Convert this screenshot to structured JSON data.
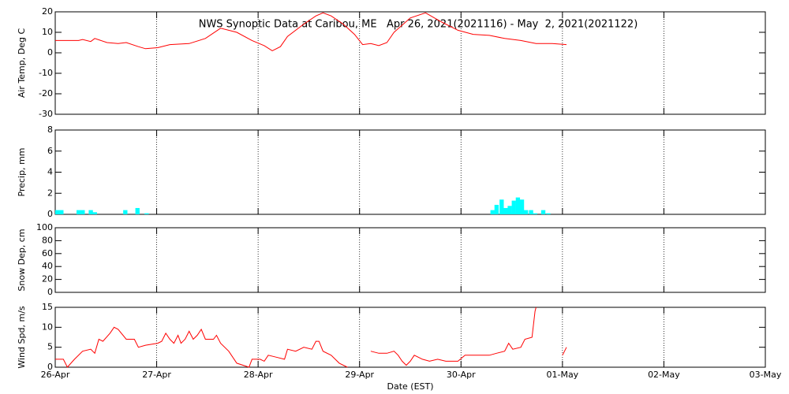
{
  "chart_data": [
    {
      "type": "line",
      "title": "NWS Synoptic Data at Caribou, ME   Apr 26, 2021(2021116) - May  2, 2021(2021122)",
      "ylabel": "Air Temp, Deg C",
      "color": "#ff0000",
      "x": [
        0,
        0.23,
        0.27,
        0.35,
        0.39,
        0.51,
        0.62,
        0.7,
        0.82,
        0.89,
        1.01,
        1.13,
        1.32,
        1.48,
        1.63,
        1.79,
        1.94,
        2.06,
        2.14,
        2.22,
        2.29,
        2.45,
        2.57,
        2.64,
        2.72,
        2.84,
        2.95,
        3.03,
        3.11,
        3.19,
        3.27,
        3.34,
        3.5,
        3.65,
        3.81,
        3.97,
        4.12,
        4.28,
        4.43,
        4.59,
        4.74,
        4.9,
        5.04
      ],
      "values": [
        6,
        6,
        6.5,
        5.5,
        7,
        5,
        4.5,
        5,
        3,
        2,
        2.5,
        4,
        4.5,
        7,
        12,
        10,
        6,
        3.5,
        1,
        3,
        8,
        14,
        18,
        19.5,
        18,
        14,
        9,
        4,
        4.5,
        3.5,
        5,
        10,
        17,
        19.5,
        15,
        11,
        9,
        8.5,
        7,
        6,
        4.5,
        4.5,
        4
      ],
      "xlim": [
        0,
        7
      ],
      "xticks": [
        0,
        1,
        2,
        3,
        4,
        5,
        6,
        7
      ],
      "ylim": [
        -30,
        20
      ],
      "yticks": [
        -30,
        -20,
        -10,
        0,
        10,
        20
      ]
    },
    {
      "type": "bar",
      "ylabel": "Precip, mm",
      "color": "#00ffff",
      "x": [
        0.0,
        0.04,
        0.21,
        0.25,
        0.33,
        0.37,
        0.67,
        0.79,
        0.88,
        4.29,
        4.33,
        4.38,
        4.42,
        4.46,
        4.5,
        4.54,
        4.58,
        4.62,
        4.67,
        4.71,
        4.79,
        4.84
      ],
      "values": [
        0.4,
        0.4,
        0.4,
        0.4,
        0.4,
        0.2,
        0.4,
        0.6,
        0.1,
        0.4,
        0.9,
        1.4,
        0.6,
        0.8,
        1.3,
        1.6,
        1.4,
        0.4,
        0.4,
        0.1,
        0.4,
        0.1
      ],
      "xlim": [
        0,
        7
      ],
      "xticks": [
        0,
        1,
        2,
        3,
        4,
        5,
        6,
        7
      ],
      "ylim": [
        0,
        8
      ],
      "yticks": [
        0,
        2,
        4,
        6,
        8
      ]
    },
    {
      "type": "line",
      "ylabel": "Snow Dep, cm",
      "xlim": [
        0,
        7
      ],
      "xticks": [
        0,
        1,
        2,
        3,
        4,
        5,
        6,
        7
      ],
      "ylim": [
        0,
        100
      ],
      "yticks": [
        0,
        20,
        40,
        60,
        80,
        100
      ]
    },
    {
      "type": "line",
      "ylabel": "Wind Spd, m/s",
      "xlabel": "Date (EST)",
      "color": "#ff0000",
      "x": [
        0,
        0.08,
        0.12,
        0.19,
        0.27,
        0.35,
        0.39,
        0.43,
        0.47,
        0.54,
        0.58,
        0.62,
        0.7,
        0.78,
        0.82,
        0.89,
        1.01,
        1.05,
        1.09,
        1.13,
        1.17,
        1.21,
        1.24,
        1.28,
        1.32,
        1.36,
        1.4,
        1.44,
        1.48,
        1.56,
        1.59,
        1.63,
        1.71,
        1.79,
        1.91,
        1.94,
        2.02,
        2.06,
        2.1,
        2.18,
        2.26,
        2.29,
        2.37,
        2.45,
        2.53,
        2.57,
        2.6,
        2.64,
        2.72,
        2.8,
        2.88,
        2.95,
        3.11,
        3.19,
        3.27,
        3.34,
        3.38,
        3.42,
        3.46,
        3.5,
        3.54,
        3.62,
        3.69,
        3.77,
        3.85,
        3.97,
        4.04,
        4.28,
        4.35,
        4.43,
        4.47,
        4.51,
        4.59,
        4.63,
        4.7,
        4.73,
        4.74,
        4.85,
        5.0,
        5.04
      ],
      "values": [
        2,
        2,
        0,
        2,
        4,
        4.5,
        3.5,
        7,
        6.5,
        8.5,
        10,
        9.5,
        7,
        7,
        5,
        5.5,
        6,
        6.5,
        8.5,
        7,
        6,
        8,
        6,
        7,
        9,
        7,
        8,
        9.5,
        7,
        7,
        8,
        6,
        4,
        1,
        0,
        2,
        2,
        1.5,
        3,
        2.5,
        2,
        4.5,
        4,
        5,
        4.5,
        6.5,
        6.5,
        4,
        3,
        1,
        0,
        null,
        4,
        3.5,
        3.5,
        4,
        3,
        1.5,
        0.5,
        1.5,
        3,
        2,
        1.5,
        2,
        1.5,
        1.5,
        3,
        3,
        3.5,
        4,
        6,
        4.5,
        5,
        7,
        7.5,
        14,
        15,
        null,
        3,
        5
      ],
      "xlim": [
        0,
        7
      ],
      "xticks": [
        {
          "value": 0,
          "label": "26-Apr"
        },
        {
          "value": 1,
          "label": "27-Apr"
        },
        {
          "value": 2,
          "label": "28-Apr"
        },
        {
          "value": 3,
          "label": "29-Apr"
        },
        {
          "value": 4,
          "label": "30-Apr"
        },
        {
          "value": 5,
          "label": "01-May"
        },
        {
          "value": 6,
          "label": "02-May"
        },
        {
          "value": 7,
          "label": "03-May"
        }
      ],
      "ylim": [
        0,
        15
      ],
      "yticks": [
        0,
        5,
        10,
        15
      ]
    }
  ]
}
